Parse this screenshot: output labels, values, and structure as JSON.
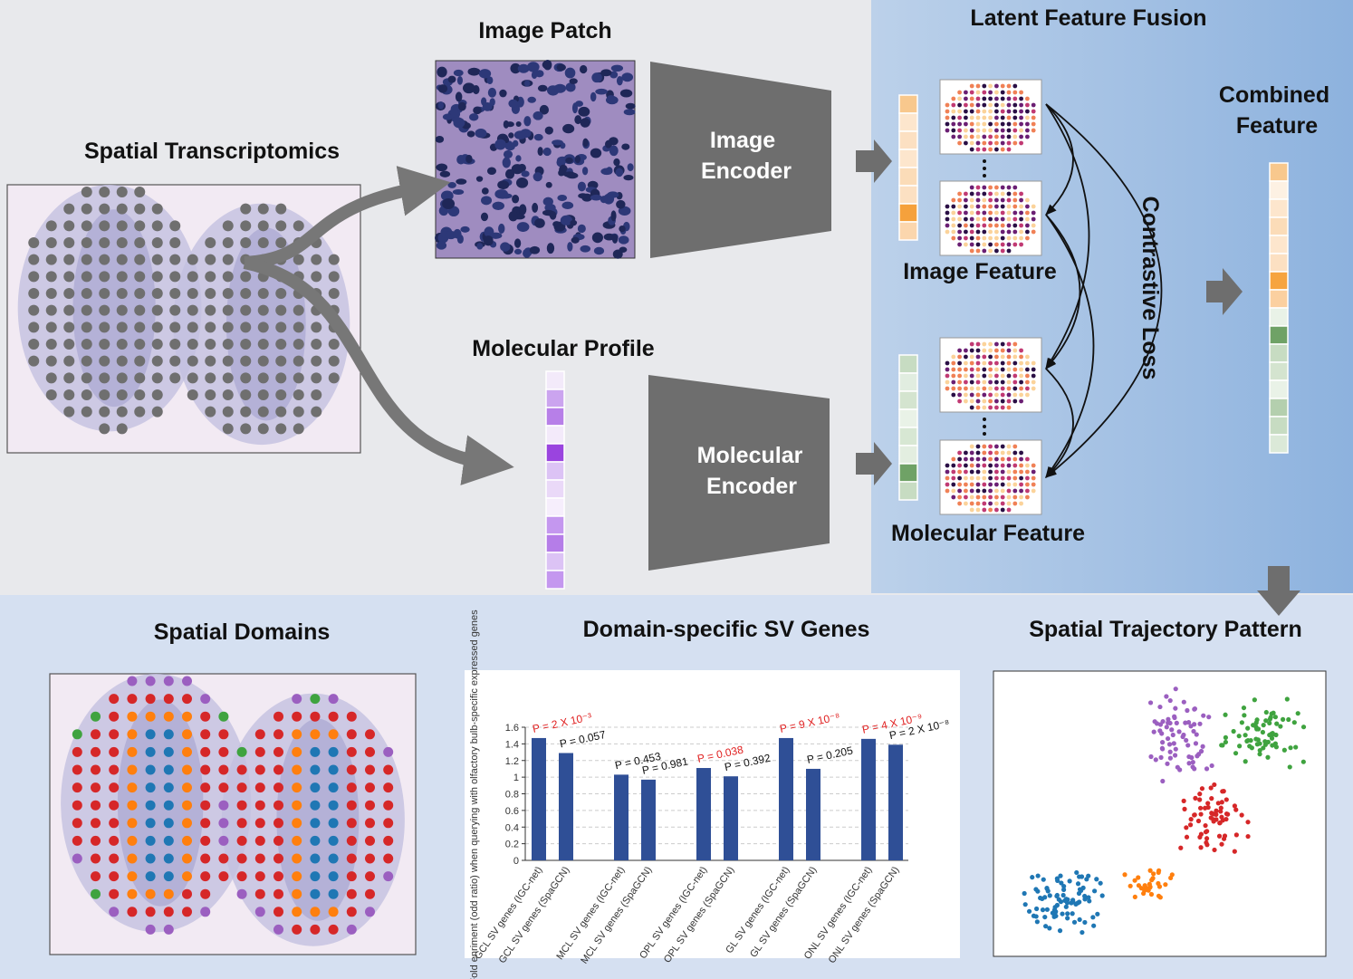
{
  "top": {
    "spatial_transcriptomics": "Spatial Transcriptomics",
    "image_patch": "Image Patch",
    "image_encoder": [
      "Image",
      "Encoder"
    ],
    "molecular_profile": "Molecular Profile",
    "molecular_encoder": [
      "Molecular",
      "Encoder"
    ]
  },
  "fusion": {
    "title": "Latent Feature Fusion",
    "image_feature": "Image Feature",
    "molecular_feature": "Molecular Feature",
    "contrastive_loss": "Contrastive Loss",
    "combined_feature": [
      "Combined",
      "Feature"
    ]
  },
  "bottom": {
    "spatial_domains": "Spatial Domains",
    "sv_genes": "Domain-specific SV Genes",
    "trajectory": "Spatial Trajectory Pattern"
  },
  "chart_data": {
    "type": "bar",
    "y_label": "Fold enriment (odd ratio) when querying with olfactory bulb-specific expressed genes",
    "categories": [
      "GCL SV genes (IGC-net)",
      "GCL SV genes (SpaGCN)",
      "MCL SV genes (IGC-net)",
      "MCL SV genes (SpaGCN)",
      "OPL SV genes (IGC-net)",
      "OPL SV genes (SpaGCN)",
      "GL SV genes (IGC-net)",
      "GL SV genes (SpaGCN)",
      "ONL SV genes (IGC-net)",
      "ONL SV genes (SpaGCN)"
    ],
    "values": [
      1.47,
      1.29,
      1.03,
      0.97,
      1.11,
      1.01,
      1.47,
      1.1,
      1.46,
      1.39
    ],
    "value_labels": [
      "P = 2 X 10⁻³",
      "P = 0.057",
      "P = 0.453",
      "P = 0.981",
      "P = 0.038",
      "P = 0.392",
      "P = 9 X 10⁻⁸",
      "P = 0.205",
      "P = 4 X 10⁻⁹",
      "P = 2 X 10⁻⁸"
    ],
    "label_colors": [
      "#e02020",
      "#111111",
      "#111111",
      "#111111",
      "#e02020",
      "#111111",
      "#e02020",
      "#111111",
      "#e02020",
      "#111111"
    ],
    "color": "#2f4f96",
    "ylim": [
      0,
      1.6
    ],
    "yticks": [
      0,
      0.2,
      0.4,
      0.6,
      0.8,
      1,
      1.2,
      1.4,
      1.6
    ],
    "grid": true
  }
}
